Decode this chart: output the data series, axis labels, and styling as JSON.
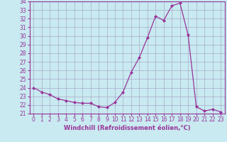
{
  "x": [
    0,
    1,
    2,
    3,
    4,
    5,
    6,
    7,
    8,
    9,
    10,
    11,
    12,
    13,
    14,
    15,
    16,
    17,
    18,
    19,
    20,
    21,
    22,
    23
  ],
  "y": [
    24.0,
    23.5,
    23.2,
    22.7,
    22.5,
    22.3,
    22.2,
    22.2,
    21.8,
    21.7,
    22.3,
    23.5,
    25.8,
    27.5,
    29.8,
    32.3,
    31.8,
    33.5,
    33.8,
    30.1,
    21.8,
    21.3,
    21.5,
    21.2
  ],
  "line_color": "#993399",
  "marker": "D",
  "markersize": 2.0,
  "linewidth": 0.9,
  "background_color": "#c8eaf0",
  "grid_color": "#aaaacc",
  "xlabel": "Windchill (Refroidissement éolien,°C)",
  "xlabel_fontsize": 6.0,
  "tick_fontsize": 5.5,
  "ylim": [
    21,
    34
  ],
  "xlim": [
    -0.5,
    23.5
  ],
  "yticks": [
    21,
    22,
    23,
    24,
    25,
    26,
    27,
    28,
    29,
    30,
    31,
    32,
    33,
    34
  ],
  "xticks": [
    0,
    1,
    2,
    3,
    4,
    5,
    6,
    7,
    8,
    9,
    10,
    11,
    12,
    13,
    14,
    15,
    16,
    17,
    18,
    19,
    20,
    21,
    22,
    23
  ]
}
